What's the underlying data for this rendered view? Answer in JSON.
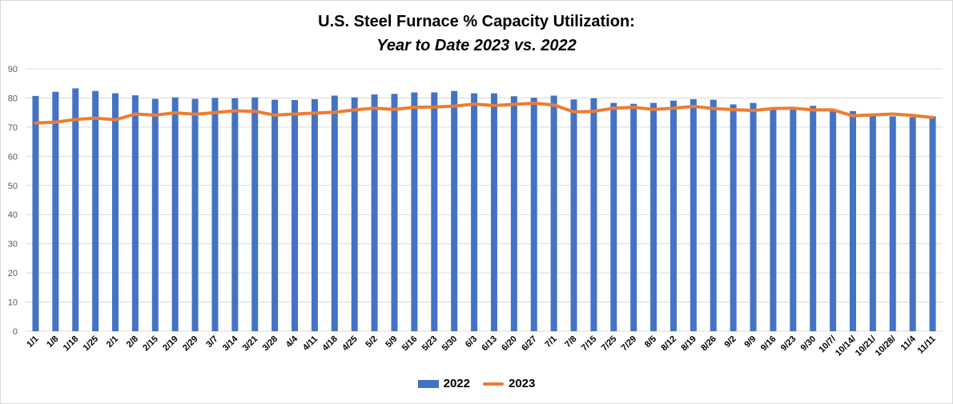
{
  "chart_data": {
    "type": "bar",
    "title": "U.S. Steel Furnace % Capacity Utilization:",
    "subtitle": "Year to Date 2023 vs. 2022",
    "categories": [
      "1/1",
      "1/8",
      "1/18",
      "1/25",
      "2/1",
      "2/8",
      "2/15",
      "2/19",
      "2/29",
      "3/7",
      "3/14",
      "3/21",
      "3/28",
      "4/4",
      "4/11",
      "4/18",
      "4/25",
      "5/2",
      "5/9",
      "5/16",
      "5/23",
      "5/30",
      "6/3",
      "6/13",
      "6/20",
      "6/27",
      "7/1",
      "7/8",
      "7/15",
      "7/25",
      "7/29",
      "8/5",
      "8/12",
      "8/19",
      "8/26",
      "9/2",
      "9/9",
      "9/16",
      "9/23",
      "9/30",
      "10/7/",
      "10/14/",
      "10/21/",
      "10/28/",
      "11/4",
      "11/11"
    ],
    "series": [
      {
        "name": "2022",
        "type": "bar",
        "color": "#4472C4",
        "values": [
          80.7,
          82.1,
          83.3,
          82.4,
          81.6,
          80.9,
          79.7,
          80.2,
          79.7,
          80.0,
          79.9,
          80.2,
          79.4,
          79.3,
          79.6,
          80.8,
          80.2,
          81.2,
          81.4,
          81.9,
          81.9,
          82.4,
          81.6,
          81.6,
          80.6,
          80.1,
          80.8,
          79.5,
          79.9,
          78.3,
          78.0,
          78.3,
          79.1,
          79.6,
          79.4,
          77.8,
          78.3,
          75.9,
          76.2,
          77.3,
          75.6,
          75.5,
          74.0,
          73.7,
          73.4,
          73.7
        ]
      },
      {
        "name": "2023",
        "type": "line",
        "color": "#ED7D31",
        "values": [
          71.4,
          71.7,
          72.6,
          73.1,
          72.5,
          74.5,
          74.1,
          74.9,
          74.4,
          75.0,
          75.6,
          75.4,
          74.1,
          74.5,
          74.8,
          75.1,
          75.9,
          76.5,
          76.1,
          76.8,
          76.9,
          77.2,
          77.9,
          77.4,
          77.8,
          78.2,
          77.6,
          75.2,
          75.4,
          76.5,
          76.8,
          76.1,
          76.5,
          77.1,
          76.4,
          76.0,
          75.7,
          76.4,
          76.5,
          75.9,
          75.9,
          73.9,
          74.2,
          74.5,
          74.0,
          73.3
        ]
      }
    ],
    "xlabel": "",
    "ylabel": "",
    "ylim": [
      0,
      90
    ],
    "yticks": [
      0,
      10,
      20,
      30,
      40,
      50,
      60,
      70,
      80,
      90
    ],
    "grid": true,
    "legend": "bottom"
  }
}
